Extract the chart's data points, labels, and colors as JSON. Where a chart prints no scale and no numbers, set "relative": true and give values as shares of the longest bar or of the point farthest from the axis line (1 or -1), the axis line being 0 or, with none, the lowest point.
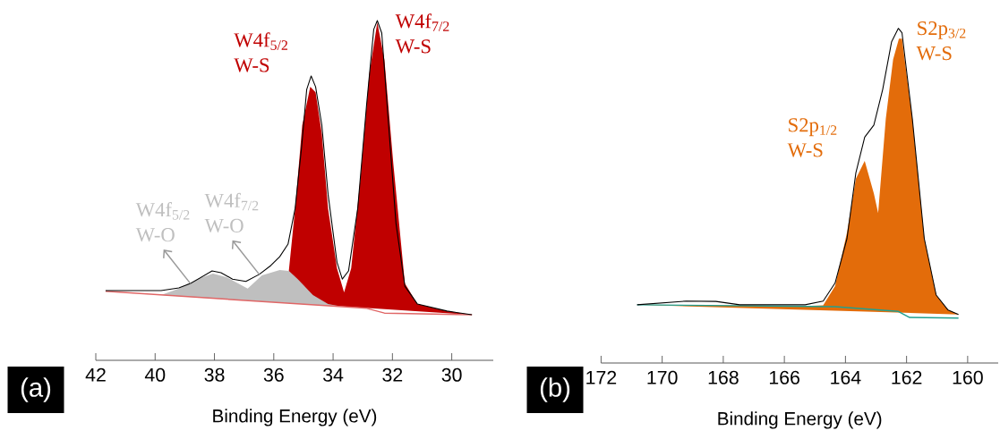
{
  "chart_data": [
    {
      "type": "area",
      "relative": true,
      "xlabel": "Binding Energy (eV)",
      "xlim": [
        42,
        28.6
      ],
      "xticks": [
        42,
        40,
        38,
        36,
        34,
        32,
        30
      ],
      "tick_labels": "x",
      "series": [
        {
          "color": "#c00000",
          "x": [
            35.6,
            35.28,
            35.04,
            34.77,
            34.59,
            34.38,
            34.17,
            33.87,
            33.63,
            33.39,
            33.08,
            32.78,
            32.51,
            32.27,
            31.97,
            31.58,
            31.16,
            30.16,
            29.32
          ],
          "values": [
            0.17,
            0.447,
            0.692,
            0.805,
            0.789,
            0.666,
            0.447,
            0.271,
            0.2,
            0.271,
            0.534,
            0.842,
            0.995,
            0.884,
            0.579,
            0.226,
            0.166,
            0.145,
            0.134
          ]
        },
        {
          "color": "#bfbfbf",
          "x": [
            39.8,
            39.2,
            38.6,
            38.05,
            37.6,
            36.88,
            36.4,
            35.8,
            35.49,
            35.19,
            34.68,
            34.17,
            33.69
          ],
          "values": [
            0.192,
            0.211,
            0.239,
            0.255,
            0.245,
            0.211,
            0.25,
            0.266,
            0.263,
            0.239,
            0.192,
            0.166,
            0.158
          ]
        },
        {
          "type": "line",
          "color": "#e06666",
          "x": [
            41.67,
            32.87,
            32.27,
            29.32
          ],
          "values": [
            0.203,
            0.153,
            0.139,
            0.134
          ]
        },
        {
          "type": "line",
          "color": "#000000",
          "x": [
            41.67,
            39.8,
            39.2,
            38.81,
            38.08,
            37.78,
            37.39,
            36.94,
            36.49,
            36.1,
            35.8,
            35.52,
            35.28,
            35.07,
            34.89,
            34.74,
            34.59,
            34.38,
            34.17,
            33.87,
            33.69,
            33.48,
            33.17,
            32.87,
            32.63,
            32.51,
            32.36,
            32.18,
            31.88,
            31.58,
            31.16,
            30.16,
            29.32
          ],
          "values": [
            0.205,
            0.205,
            0.213,
            0.226,
            0.263,
            0.258,
            0.239,
            0.232,
            0.253,
            0.279,
            0.305,
            0.342,
            0.447,
            0.621,
            0.797,
            0.837,
            0.805,
            0.692,
            0.489,
            0.289,
            0.239,
            0.263,
            0.447,
            0.753,
            0.974,
            1.0,
            0.963,
            0.753,
            0.403,
            0.218,
            0.166,
            0.145,
            0.134
          ]
        }
      ],
      "annotations": [
        {
          "text": "W4f$_{5/2}$ W-O",
          "x": 38.81,
          "y": 0.226
        },
        {
          "text": "W4f$_{7/2}$ W-O",
          "x": 36.49,
          "y": 0.253
        },
        {
          "text": "W4f$_{5/2}$ W-S",
          "x": 34.74,
          "y": 0.837
        },
        {
          "text": "W4f$_{7/2}$ W-S",
          "x": 32.51,
          "y": 1.0
        },
        "(a)"
      ]
    },
    {
      "type": "area",
      "relative": true,
      "xlabel": "Binding Energy (eV)",
      "xlim": [
        172,
        159.0
      ],
      "xticks": [
        172,
        170,
        168,
        166,
        164,
        162,
        160
      ],
      "tick_labels": "x",
      "series": [
        {
          "color": "#e36c0a",
          "x": [
            170.82,
            165.32,
            164.73,
            164.34,
            163.95,
            163.66,
            163.37,
            163.07,
            162.93,
            162.68,
            162.44,
            162.25,
            162.15,
            161.81,
            161.42,
            161.03,
            160.64,
            160.3
          ],
          "values": [
            0.174,
            0.17,
            0.172,
            0.23,
            0.39,
            0.55,
            0.604,
            0.506,
            0.448,
            0.729,
            0.907,
            0.969,
            0.969,
            0.729,
            0.372,
            0.203,
            0.158,
            0.145
          ]
        },
        {
          "type": "line",
          "color": "#20a090",
          "x": [
            170.82,
            164.34,
            162.27,
            161.9,
            160.3
          ],
          "values": [
            0.174,
            0.168,
            0.154,
            0.136,
            0.134
          ]
        },
        {
          "type": "line",
          "color": "#000000",
          "x": [
            170.82,
            169.21,
            168.24,
            167.46,
            165.32,
            164.73,
            164.34,
            163.95,
            163.66,
            163.37,
            163.07,
            162.78,
            162.49,
            162.27,
            162.15,
            161.81,
            161.42,
            161.03,
            160.64,
            160.3
          ],
          "values": [
            0.174,
            0.185,
            0.184,
            0.174,
            0.174,
            0.185,
            0.239,
            0.372,
            0.568,
            0.675,
            0.711,
            0.818,
            0.96,
            1.0,
            0.987,
            0.729,
            0.372,
            0.203,
            0.158,
            0.145
          ]
        }
      ],
      "annotations": [
        {
          "text": "S2p$_{1/2}$ W-S",
          "x": 163.37,
          "y": 0.604
        },
        {
          "text": "S2p$_{3/2}$ W-S",
          "x": 162.27,
          "y": 1.0
        },
        "(b)"
      ]
    }
  ]
}
